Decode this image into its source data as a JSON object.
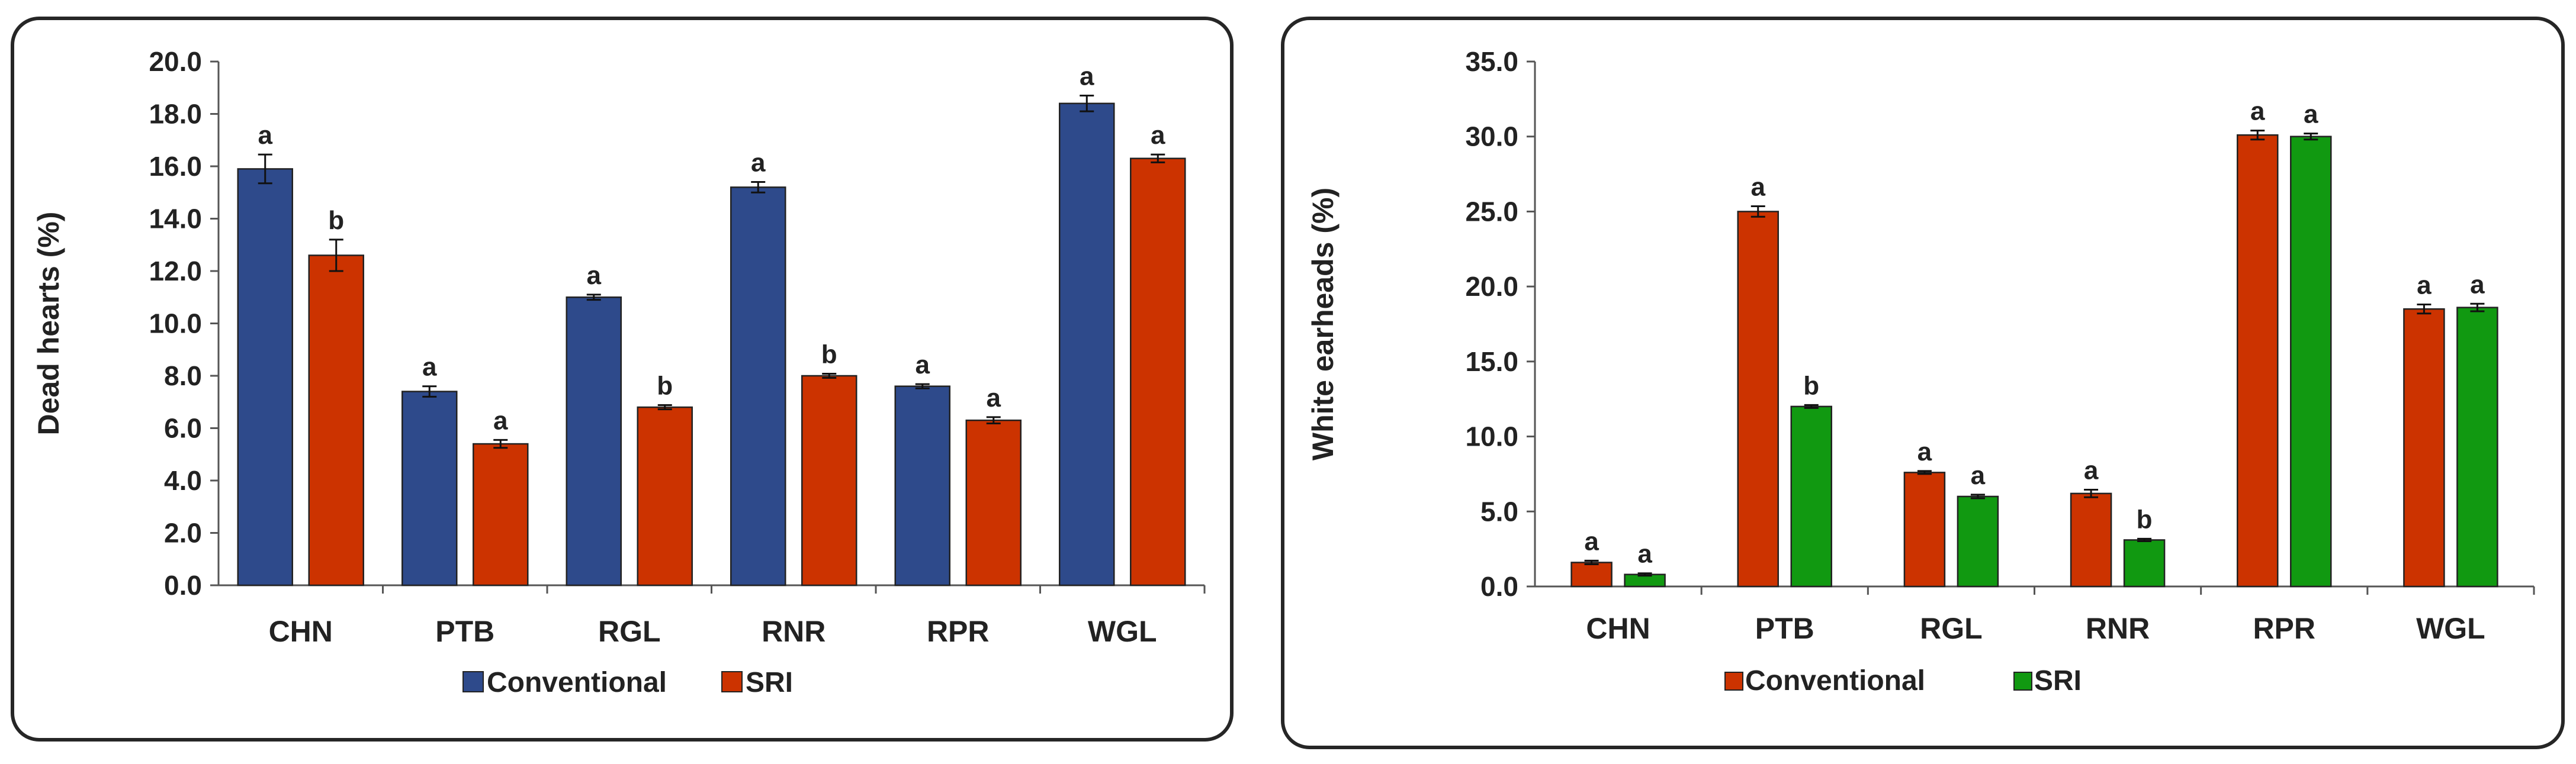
{
  "chart_data": [
    {
      "type": "bar",
      "title": "",
      "xlabel": "",
      "ylabel": "Dead hearts (%)",
      "ylim": [
        0,
        20
      ],
      "yticks": [
        "0.0",
        "2.0",
        "4.0",
        "6.0",
        "8.0",
        "10.0",
        "12.0",
        "14.0",
        "16.0",
        "18.0",
        "20.0"
      ],
      "categories": [
        "CHN",
        "PTB",
        "RGL",
        "RNR",
        "RPR",
        "WGL"
      ],
      "legend": "bottom-center",
      "series": [
        {
          "name": "Conventional",
          "color": "#2E4A8B",
          "values": [
            15.9,
            7.4,
            11.0,
            15.2,
            7.6,
            18.4
          ],
          "errors": [
            0.55,
            0.2,
            0.1,
            0.2,
            0.08,
            0.3
          ],
          "letters": [
            "a",
            "a",
            "a",
            "a",
            "a",
            "a"
          ]
        },
        {
          "name": "SRI",
          "color": "#CC3300",
          "values": [
            12.6,
            5.4,
            6.8,
            8.0,
            6.3,
            16.3
          ],
          "errors": [
            0.6,
            0.15,
            0.08,
            0.08,
            0.12,
            0.15
          ],
          "letters": [
            "b",
            "a",
            "b",
            "b",
            "a",
            "a"
          ]
        }
      ]
    },
    {
      "type": "bar",
      "title": "",
      "xlabel": "",
      "ylabel": "White earheads (%)",
      "ylim": [
        0,
        35
      ],
      "yticks": [
        "0.0",
        "5.0",
        "10.0",
        "15.0",
        "20.0",
        "25.0",
        "30.0",
        "35.0"
      ],
      "categories": [
        "CHN",
        "PTB",
        "RGL",
        "RNR",
        "RPR",
        "WGL"
      ],
      "legend": "bottom-center",
      "series": [
        {
          "name": "Conventional",
          "color": "#CC3300",
          "values": [
            1.6,
            25.0,
            7.6,
            6.2,
            30.1,
            18.5
          ],
          "errors": [
            0.12,
            0.35,
            0.1,
            0.25,
            0.3,
            0.3
          ],
          "letters": [
            "a",
            "a",
            "a",
            "a",
            "a",
            "a"
          ]
        },
        {
          "name": "SRI",
          "color": "#119911",
          "values": [
            0.8,
            12.0,
            6.0,
            3.1,
            30.0,
            18.6
          ],
          "errors": [
            0.08,
            0.1,
            0.12,
            0.08,
            0.2,
            0.25
          ],
          "letters": [
            "a",
            "b",
            "a",
            "b",
            "a",
            "a"
          ]
        }
      ]
    }
  ]
}
